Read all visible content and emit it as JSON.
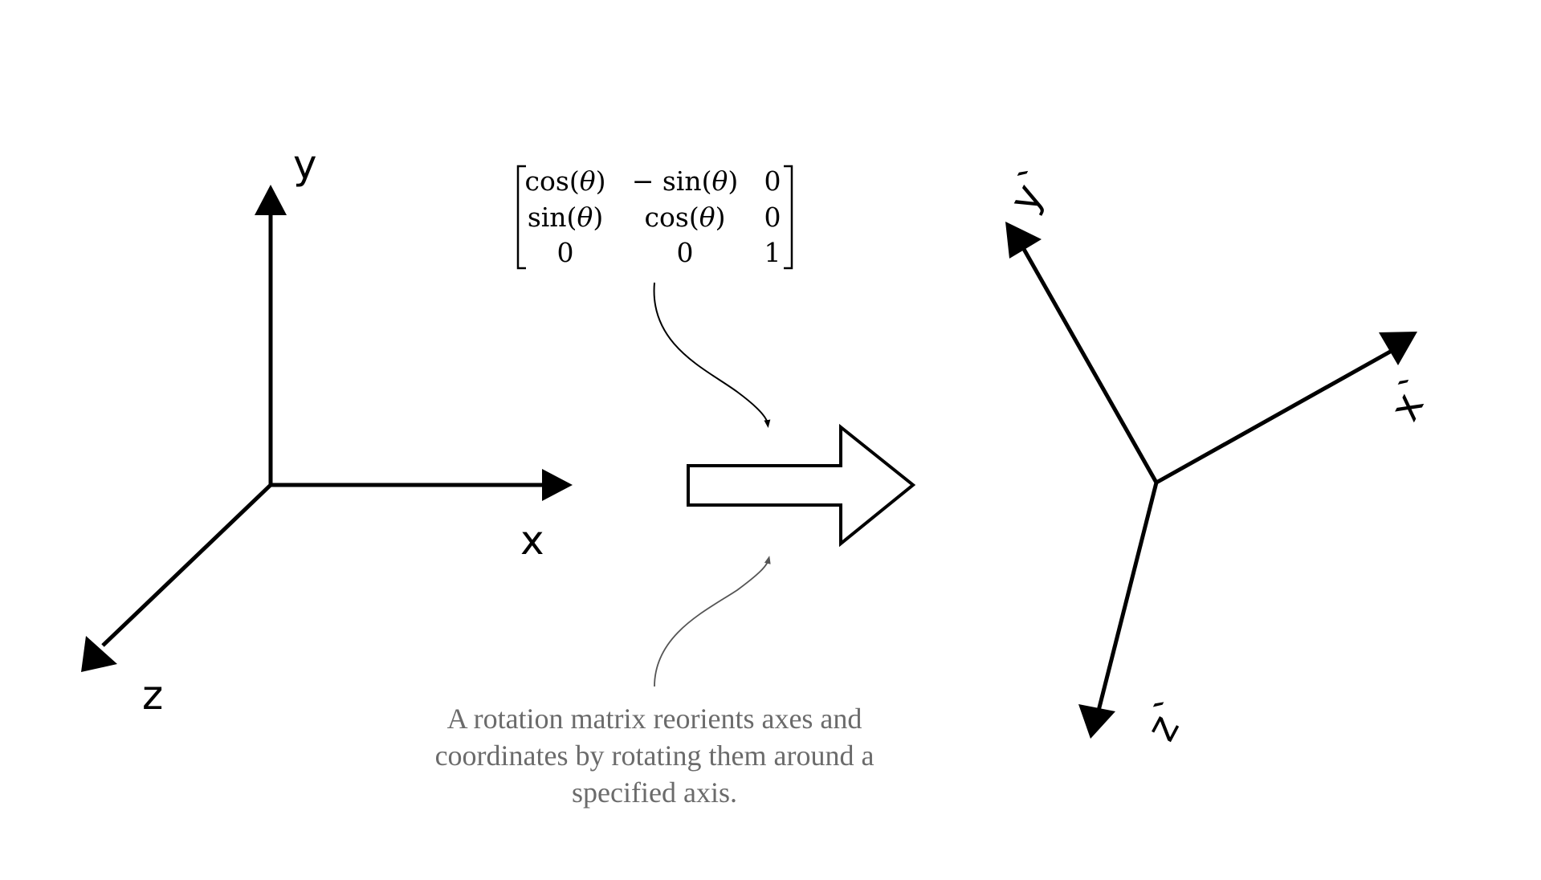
{
  "original_axes": {
    "x_label": "x",
    "y_label": "y",
    "z_label": "z"
  },
  "rotated_axes": {
    "x_label": "x`",
    "y_label": "y`",
    "z_label": "z`"
  },
  "matrix": {
    "cells": [
      [
        "cos(",
        "θ",
        ")"
      ],
      [
        "− sin(",
        "θ",
        ")"
      ],
      [
        "0",
        "",
        ""
      ],
      [
        "sin(",
        "θ",
        ")"
      ],
      [
        "cos(",
        "θ",
        ")"
      ],
      [
        "0",
        "",
        ""
      ],
      [
        "0",
        "",
        ""
      ],
      [
        "0",
        "",
        ""
      ],
      [
        "1",
        "",
        ""
      ]
    ]
  },
  "caption": "A rotation matrix reorients axes and coordinates by rotating them around a specified axis.",
  "colors": {
    "line": "#000000",
    "caption_text": "#6b6b6b",
    "curve_lower": "#555555"
  }
}
